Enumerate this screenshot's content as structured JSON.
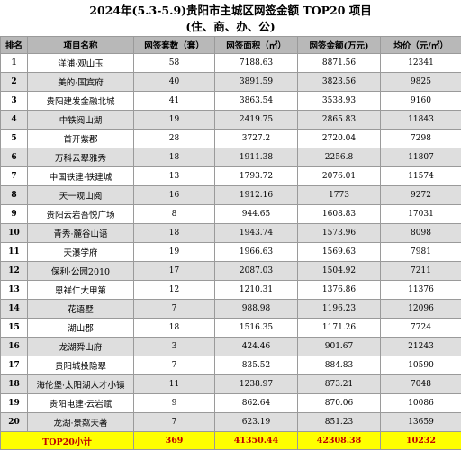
{
  "title": {
    "line1": "2024年(5.3-5.9)贵阳市主城区网签金额 TOP20 项目",
    "line2": "(住、商、办、公)"
  },
  "columns": [
    "排名",
    "项目名称",
    "网签套数（套）",
    "网签面积（㎡）",
    "网签金额(万元)",
    "均价（元/㎡）"
  ],
  "rows": [
    {
      "rank": "1",
      "name": "洋浦·观山玉",
      "units": "58",
      "area": "7188.63",
      "amount": "8871.56",
      "price": "12341"
    },
    {
      "rank": "2",
      "name": "美的·国宾府",
      "units": "40",
      "area": "3891.59",
      "amount": "3823.56",
      "price": "9825"
    },
    {
      "rank": "3",
      "name": "贵阳建发金融北城",
      "units": "41",
      "area": "3863.54",
      "amount": "3538.93",
      "price": "9160"
    },
    {
      "rank": "4",
      "name": "中铁阅山湖",
      "units": "19",
      "area": "2419.75",
      "amount": "2865.83",
      "price": "11843"
    },
    {
      "rank": "5",
      "name": "首开紫郡",
      "units": "28",
      "area": "3727.2",
      "amount": "2720.04",
      "price": "7298"
    },
    {
      "rank": "6",
      "name": "万科云翠雅秀",
      "units": "18",
      "area": "1911.38",
      "amount": "2256.8",
      "price": "11807"
    },
    {
      "rank": "7",
      "name": "中国铁建·铁建城",
      "units": "13",
      "area": "1793.72",
      "amount": "2076.01",
      "price": "11574"
    },
    {
      "rank": "8",
      "name": "天一观山阅",
      "units": "16",
      "area": "1912.16",
      "amount": "1773",
      "price": "9272"
    },
    {
      "rank": "9",
      "name": "贵阳云岩吾悦广场",
      "units": "8",
      "area": "944.65",
      "amount": "1608.83",
      "price": "17031"
    },
    {
      "rank": "10",
      "name": "青秀·麓谷山语",
      "units": "18",
      "area": "1943.74",
      "amount": "1573.96",
      "price": "8098"
    },
    {
      "rank": "11",
      "name": "天瀑学府",
      "units": "19",
      "area": "1966.63",
      "amount": "1569.63",
      "price": "7981"
    },
    {
      "rank": "12",
      "name": "保利·公园2010",
      "units": "17",
      "area": "2087.03",
      "amount": "1504.92",
      "price": "7211"
    },
    {
      "rank": "13",
      "name": "恩祥仁大甲第",
      "units": "12",
      "area": "1210.31",
      "amount": "1376.86",
      "price": "11376"
    },
    {
      "rank": "14",
      "name": "花语墅",
      "units": "7",
      "area": "988.98",
      "amount": "1196.23",
      "price": "12096"
    },
    {
      "rank": "15",
      "name": "湖山郡",
      "units": "18",
      "area": "1516.35",
      "amount": "1171.26",
      "price": "7724"
    },
    {
      "rank": "16",
      "name": "龙湖舜山府",
      "units": "3",
      "area": "424.46",
      "amount": "901.67",
      "price": "21243"
    },
    {
      "rank": "17",
      "name": "贵阳城投隐翠",
      "units": "7",
      "area": "835.52",
      "amount": "884.83",
      "price": "10590"
    },
    {
      "rank": "18",
      "name": "海伦堡·太阳湖人才小镇",
      "units": "11",
      "area": "1238.97",
      "amount": "873.21",
      "price": "7048"
    },
    {
      "rank": "19",
      "name": "贵阳电建·云岩赋",
      "units": "9",
      "area": "862.64",
      "amount": "870.06",
      "price": "10086"
    },
    {
      "rank": "20",
      "name": "龙湖·景粼天著",
      "units": "7",
      "area": "623.19",
      "amount": "851.23",
      "price": "13659"
    }
  ],
  "total": {
    "label": "TOP20小计",
    "units": "369",
    "area": "41350.44",
    "amount": "42308.38",
    "price": "10232"
  }
}
